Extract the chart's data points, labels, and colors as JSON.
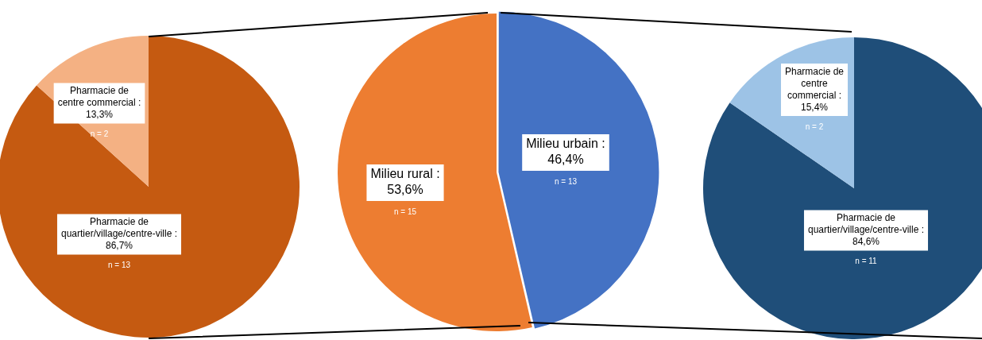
{
  "chart_data": [
    {
      "type": "pie",
      "categories": [
        "Pharmacie de quartier/village/centre-ville",
        "Pharmacie de centre commercial"
      ],
      "values": [
        86.7,
        13.3
      ],
      "colors": [
        "#c55a11",
        "#f4b183"
      ],
      "value_labels": [
        ": 86,7%",
        ": 13,3%"
      ],
      "annotations": [
        "n = 13",
        "n = 2"
      ]
    },
    {
      "type": "pie",
      "categories": [
        "Milieu urbain",
        "Milieu rural"
      ],
      "values": [
        46.4,
        53.6
      ],
      "colors": [
        "#4472c4",
        "#ed7d31"
      ],
      "value_labels": [
        ": 46,4%",
        ": 53,6%"
      ],
      "annotations": [
        "n = 13",
        "n = 15"
      ]
    },
    {
      "type": "pie",
      "categories": [
        "Pharmacie de quartier/village/centre-ville",
        "Pharmacie de centre commercial"
      ],
      "values": [
        84.6,
        15.4
      ],
      "colors": [
        "#1f4e79",
        "#9dc3e6"
      ],
      "value_labels": [
        ": 84,6%",
        ": 15,4%"
      ],
      "annotations": [
        "n = 11",
        "n = 2"
      ]
    }
  ]
}
